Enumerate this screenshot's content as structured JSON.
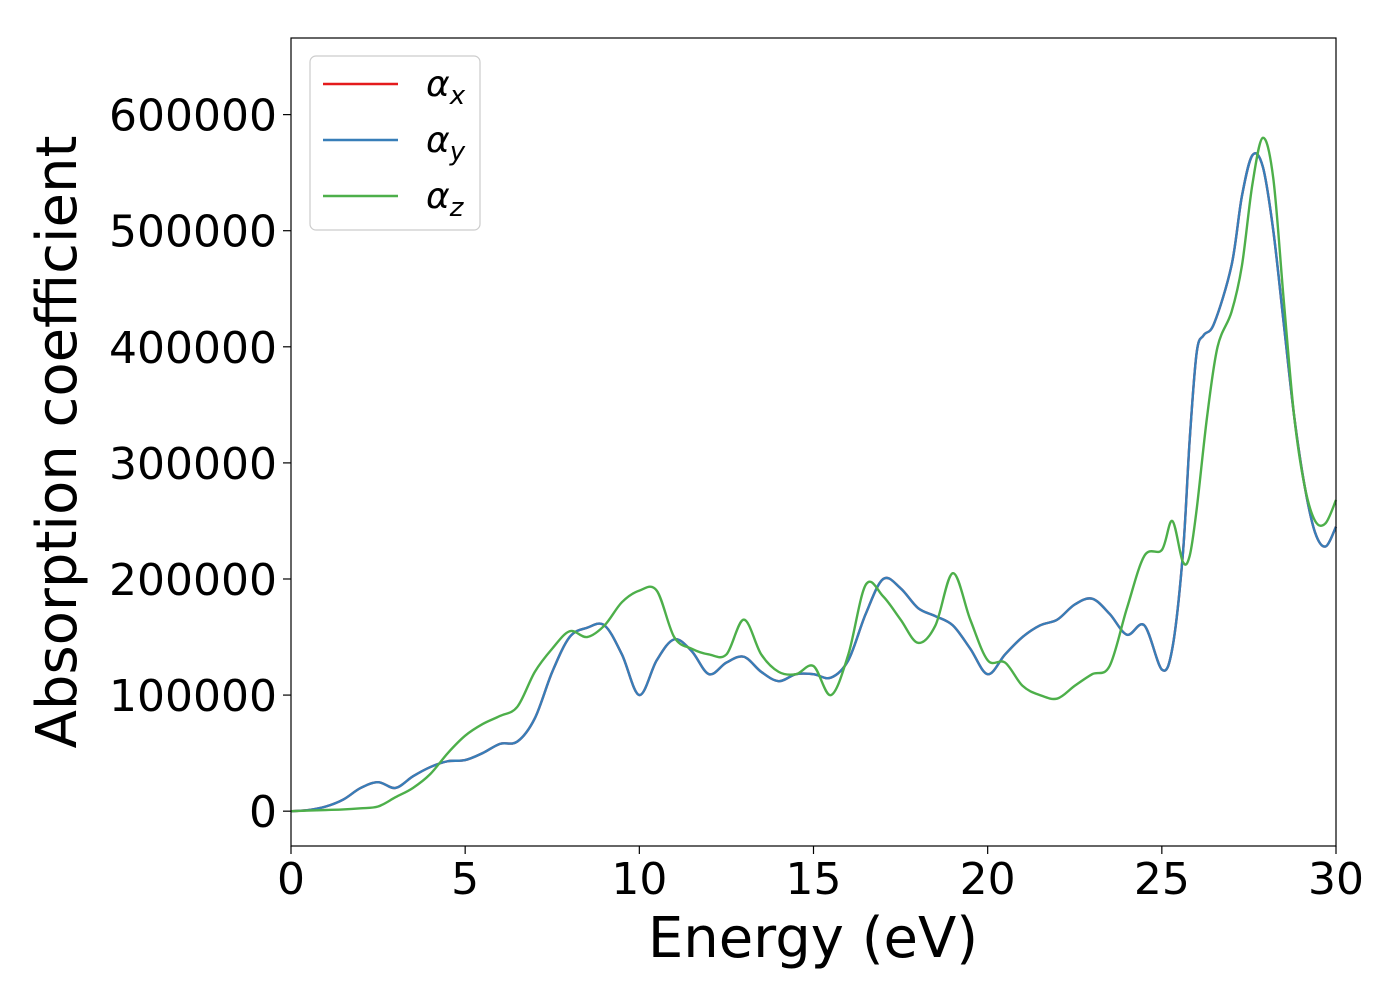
{
  "chart_data": {
    "type": "line",
    "title": "",
    "xlabel": "Energy (eV)",
    "ylabel": "Absorption coefficient",
    "xlim": [
      0,
      30
    ],
    "ylim": [
      -30000,
      666000
    ],
    "xticks": [
      0,
      5,
      10,
      15,
      20,
      25,
      30
    ],
    "xtick_labels": [
      "0",
      "5",
      "10",
      "15",
      "20",
      "25",
      "30"
    ],
    "yticks": [
      0,
      100000,
      200000,
      300000,
      400000,
      500000,
      600000
    ],
    "ytick_labels": [
      "0",
      "100000",
      "200000",
      "300000",
      "400000",
      "500000",
      "600000"
    ],
    "grid": false,
    "legend_position": "top-left",
    "series": [
      {
        "name": "α_x",
        "legend_base": "α",
        "legend_sub": "x",
        "color": "#e41a1c",
        "x": [
          0,
          0.5,
          1.0,
          1.5,
          2.0,
          2.5,
          3.0,
          3.5,
          4.0,
          4.5,
          5.0,
          5.5,
          6.0,
          6.5,
          7.0,
          7.5,
          8.0,
          8.5,
          9.0,
          9.5,
          10.0,
          10.5,
          11.0,
          11.5,
          12.0,
          12.5,
          13.0,
          13.5,
          14.0,
          14.5,
          15.0,
          15.5,
          16.0,
          16.5,
          17.0,
          17.5,
          18.0,
          18.5,
          19.0,
          19.5,
          20.0,
          20.5,
          21.0,
          21.5,
          22.0,
          22.5,
          23.0,
          23.5,
          24.0,
          24.5,
          25.0,
          25.3,
          25.6,
          25.8,
          26.0,
          26.2,
          26.5,
          27.0,
          27.3,
          27.6,
          27.9,
          28.2,
          28.5,
          28.8,
          29.1,
          29.4,
          29.7,
          30.0
        ],
        "y": [
          0,
          1000,
          4000,
          10000,
          20000,
          25000,
          20000,
          30000,
          38000,
          43000,
          44000,
          50000,
          58000,
          60000,
          80000,
          120000,
          150000,
          158000,
          160000,
          135000,
          100000,
          130000,
          148000,
          138000,
          118000,
          128000,
          133000,
          120000,
          112000,
          118000,
          118000,
          115000,
          130000,
          170000,
          200000,
          192000,
          175000,
          168000,
          160000,
          140000,
          118000,
          135000,
          150000,
          160000,
          165000,
          178000,
          183000,
          170000,
          152000,
          160000,
          122000,
          140000,
          220000,
          320000,
          395000,
          410000,
          420000,
          470000,
          530000,
          565000,
          555000,
          500000,
          420000,
          340000,
          280000,
          240000,
          228000,
          245000
        ]
      },
      {
        "name": "α_y",
        "legend_base": "α",
        "legend_sub": "y",
        "color": "#377eb8",
        "x": [
          0,
          0.5,
          1.0,
          1.5,
          2.0,
          2.5,
          3.0,
          3.5,
          4.0,
          4.5,
          5.0,
          5.5,
          6.0,
          6.5,
          7.0,
          7.5,
          8.0,
          8.5,
          9.0,
          9.5,
          10.0,
          10.5,
          11.0,
          11.5,
          12.0,
          12.5,
          13.0,
          13.5,
          14.0,
          14.5,
          15.0,
          15.5,
          16.0,
          16.5,
          17.0,
          17.5,
          18.0,
          18.5,
          19.0,
          19.5,
          20.0,
          20.5,
          21.0,
          21.5,
          22.0,
          22.5,
          23.0,
          23.5,
          24.0,
          24.5,
          25.0,
          25.3,
          25.6,
          25.8,
          26.0,
          26.2,
          26.5,
          27.0,
          27.3,
          27.6,
          27.9,
          28.2,
          28.5,
          28.8,
          29.1,
          29.4,
          29.7,
          30.0
        ],
        "y": [
          0,
          1000,
          4000,
          10000,
          20000,
          25000,
          20000,
          30000,
          38000,
          43000,
          44000,
          50000,
          58000,
          60000,
          80000,
          120000,
          150000,
          158000,
          160000,
          135000,
          100000,
          130000,
          148000,
          138000,
          118000,
          128000,
          133000,
          120000,
          112000,
          118000,
          118000,
          115000,
          130000,
          170000,
          200000,
          192000,
          175000,
          168000,
          160000,
          140000,
          118000,
          135000,
          150000,
          160000,
          165000,
          178000,
          183000,
          170000,
          152000,
          160000,
          122000,
          140000,
          220000,
          320000,
          395000,
          410000,
          420000,
          470000,
          530000,
          565000,
          555000,
          500000,
          420000,
          340000,
          280000,
          240000,
          228000,
          245000
        ]
      },
      {
        "name": "α_z",
        "legend_base": "α",
        "legend_sub": "z",
        "color": "#4daf4a",
        "x": [
          0,
          0.5,
          1.0,
          1.5,
          2.0,
          2.5,
          3.0,
          3.5,
          4.0,
          4.5,
          5.0,
          5.5,
          6.0,
          6.5,
          7.0,
          7.5,
          8.0,
          8.5,
          9.0,
          9.5,
          10.0,
          10.5,
          11.0,
          11.5,
          12.0,
          12.5,
          13.0,
          13.5,
          14.0,
          14.5,
          15.0,
          15.5,
          16.0,
          16.5,
          17.0,
          17.5,
          18.0,
          18.5,
          19.0,
          19.5,
          20.0,
          20.5,
          21.0,
          21.5,
          22.0,
          22.5,
          23.0,
          23.5,
          24.0,
          24.5,
          25.0,
          25.3,
          25.6,
          25.8,
          26.0,
          26.3,
          26.6,
          27.0,
          27.3,
          27.6,
          27.9,
          28.2,
          28.5,
          28.8,
          29.1,
          29.4,
          29.7,
          30.0
        ],
        "y": [
          0,
          500,
          1000,
          1500,
          2500,
          4000,
          12000,
          20000,
          32000,
          50000,
          65000,
          75000,
          82000,
          90000,
          120000,
          140000,
          155000,
          150000,
          160000,
          180000,
          190000,
          190000,
          150000,
          140000,
          135000,
          135000,
          165000,
          135000,
          120000,
          118000,
          125000,
          100000,
          135000,
          195000,
          185000,
          165000,
          145000,
          160000,
          205000,
          165000,
          130000,
          128000,
          108000,
          100000,
          97000,
          108000,
          118000,
          125000,
          175000,
          220000,
          225000,
          250000,
          215000,
          220000,
          260000,
          340000,
          400000,
          430000,
          470000,
          540000,
          580000,
          545000,
          440000,
          340000,
          280000,
          250000,
          248000,
          268000
        ]
      }
    ]
  }
}
